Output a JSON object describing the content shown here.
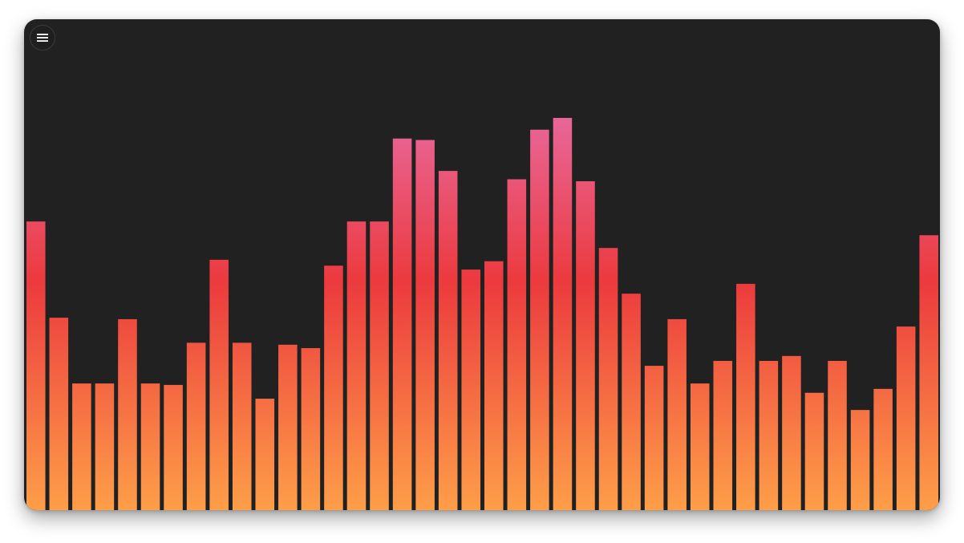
{
  "toolbar": {
    "menu_icon": "hamburger-menu-icon"
  },
  "visualizer": {
    "max_level": 1.0,
    "levels": [
      0.588,
      0.392,
      0.258,
      0.258,
      0.389,
      0.258,
      0.255,
      0.341,
      0.51,
      0.341,
      0.227,
      0.337,
      0.33,
      0.498,
      0.588,
      0.588,
      0.757,
      0.754,
      0.691,
      0.49,
      0.507,
      0.674,
      0.775,
      0.799,
      0.67,
      0.534,
      0.441,
      0.294,
      0.389,
      0.258,
      0.304,
      0.461,
      0.304,
      0.314,
      0.239,
      0.304,
      0.204,
      0.247,
      0.374,
      0.56
    ],
    "colors": {
      "top": "#e8679a",
      "mid": "#ec3a3e",
      "bottom": "#fe9e48",
      "background": "#212121"
    }
  }
}
